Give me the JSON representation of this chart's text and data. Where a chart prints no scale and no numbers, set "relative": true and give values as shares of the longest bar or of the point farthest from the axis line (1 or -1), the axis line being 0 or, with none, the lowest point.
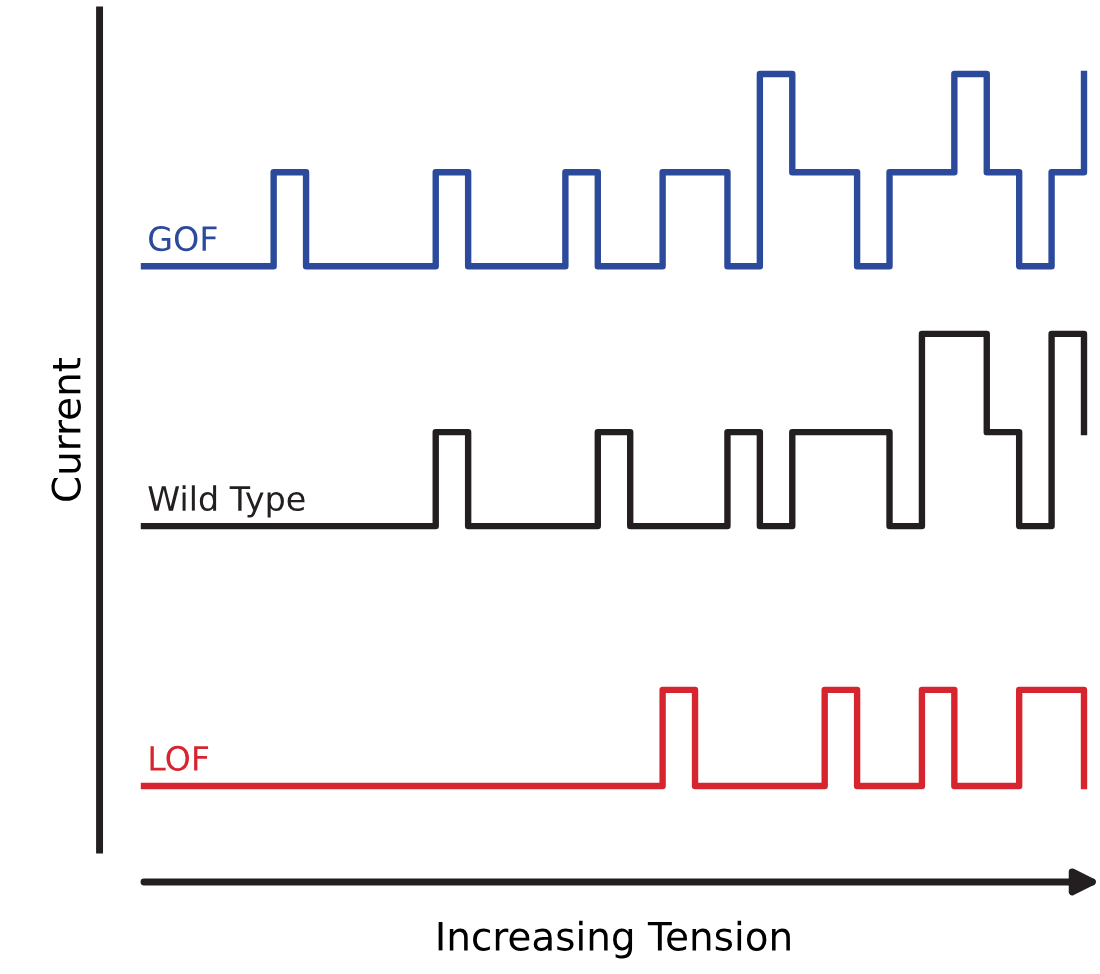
{
  "chart_data": {
    "type": "step",
    "relative": true,
    "xlabel": "Increasing Tension",
    "ylabel": "Current",
    "line_style": "solid",
    "marker": "none",
    "categories": [
      null,
      null,
      null,
      null,
      null,
      null,
      null,
      null,
      null,
      null,
      null,
      null,
      null,
      null,
      null,
      null,
      null,
      null,
      null,
      null,
      null,
      null,
      null,
      null,
      null,
      null,
      null,
      null,
      null,
      null
    ],
    "series": [
      {
        "name": "GOF",
        "color": "#2b4a9b",
        "values": [
          0.73,
          0.73,
          0.73,
          0.73,
          0.862,
          0.73,
          0.73,
          0.73,
          0.73,
          0.862,
          0.73,
          0.73,
          0.73,
          0.862,
          0.73,
          0.73,
          0.862,
          0.862,
          0.73,
          1.0,
          0.862,
          0.862,
          0.73,
          0.862,
          0.862,
          1.0,
          0.862,
          0.73,
          0.862,
          1.0
        ]
      },
      {
        "name": "Wild Type",
        "color": "#231f20",
        "values": [
          0.365,
          0.365,
          0.365,
          0.365,
          0.365,
          0.365,
          0.365,
          0.365,
          0.365,
          0.497,
          0.365,
          0.365,
          0.365,
          0.365,
          0.497,
          0.365,
          0.365,
          0.365,
          0.497,
          0.365,
          0.497,
          0.497,
          0.497,
          0.365,
          0.635,
          0.635,
          0.497,
          0.365,
          0.635,
          0.497
        ]
      },
      {
        "name": "LOF",
        "color": "#d7252f",
        "values": [
          0,
          0,
          0,
          0,
          0,
          0,
          0,
          0,
          0,
          0,
          0,
          0,
          0,
          0,
          0,
          0,
          0.135,
          0,
          0,
          0,
          0,
          0.135,
          0,
          0,
          0.135,
          0,
          0,
          0.135,
          0.135,
          0
        ]
      }
    ]
  }
}
